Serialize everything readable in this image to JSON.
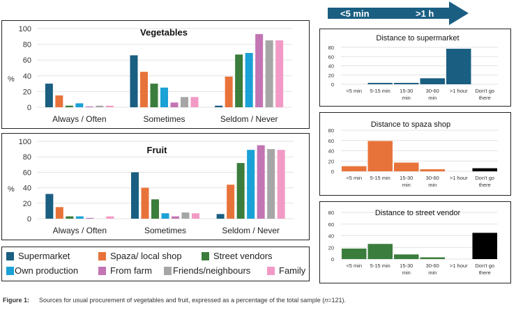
{
  "colors": {
    "Supermarket": "#1a5e82",
    "Spaza/ local shop": "#e8733a",
    "Street vendors": "#3b7d3c",
    "Own production": "#1aa1d6",
    "From farm": "#c374b3",
    "Friends/neighbours": "#a6a6a6",
    "Family": "#f29ac5",
    "dont_go": "#000000",
    "grid": "#e2e2e2"
  },
  "arrow": {
    "left_label": "<5 min",
    "right_label": ">1 h",
    "color": "#1a5e82"
  },
  "legend": {
    "items": [
      "Supermarket",
      "Spaza/ local shop",
      "Street vendors",
      "Own production",
      "From farm",
      "Friends/neighbours",
      "Family"
    ]
  },
  "caption": {
    "label": "Figure 1:",
    "text_pre": "Sources for usual procurement of vegetables and fruit, expressed as a percentage of the total sample (",
    "n_italic": "n",
    "text_post": "=121)."
  },
  "chart_data": [
    {
      "id": "vegetables",
      "type": "bar",
      "title": "Vegetables",
      "ylabel": "%",
      "xlabel": "",
      "ylim": [
        0,
        100
      ],
      "yticks": [
        0,
        20,
        40,
        60,
        80,
        100
      ],
      "grid": true,
      "categories": [
        "Always / Often",
        "Sometimes",
        "Seldom / Never"
      ],
      "series": [
        {
          "name": "Supermarket",
          "values": [
            30,
            66,
            2
          ]
        },
        {
          "name": "Spaza/ local shop",
          "values": [
            15,
            45,
            39
          ]
        },
        {
          "name": "Street vendors",
          "values": [
            2,
            30,
            67
          ]
        },
        {
          "name": "Own production",
          "values": [
            5,
            25,
            69
          ]
        },
        {
          "name": "From farm",
          "values": [
            1,
            6,
            93
          ]
        },
        {
          "name": "Friends/neighbours",
          "values": [
            2,
            13,
            85
          ]
        },
        {
          "name": "Family",
          "values": [
            2,
            13,
            85
          ]
        }
      ]
    },
    {
      "id": "fruit",
      "type": "bar",
      "title": "Fruit",
      "ylabel": "%",
      "xlabel": "",
      "ylim": [
        0,
        100
      ],
      "yticks": [
        0,
        20,
        40,
        60,
        80,
        100
      ],
      "grid": true,
      "categories": [
        "Always / Often",
        "Sometimes",
        "Seldom / Never"
      ],
      "series": [
        {
          "name": "Supermarket",
          "values": [
            32,
            60,
            6
          ]
        },
        {
          "name": "Spaza/ local shop",
          "values": [
            15,
            40,
            44
          ]
        },
        {
          "name": "Street vendors",
          "values": [
            3,
            25,
            72
          ]
        },
        {
          "name": "Own production",
          "values": [
            3,
            7,
            89
          ]
        },
        {
          "name": "From farm",
          "values": [
            1,
            3,
            95
          ]
        },
        {
          "name": "Friends/neighbours",
          "values": [
            0,
            8,
            90
          ]
        },
        {
          "name": "Family",
          "values": [
            3,
            7,
            89
          ]
        }
      ]
    },
    {
      "id": "supermarket-distance",
      "type": "bar",
      "title": "Distance to supermarket",
      "ylim": [
        0,
        80
      ],
      "yticks": [
        0,
        20,
        40,
        60,
        80
      ],
      "grid": true,
      "categories": [
        "<5 min",
        "5-15 min",
        "15-30 min",
        "30-60 min",
        ">1 hour",
        "Don't go there"
      ],
      "values": [
        0,
        3,
        3,
        13,
        77,
        0
      ],
      "bar_color": "Supermarket"
    },
    {
      "id": "spaza-distance",
      "type": "bar",
      "title": "Distance to spaza shop",
      "ylim": [
        0,
        80
      ],
      "yticks": [
        0,
        20,
        40,
        60,
        80
      ],
      "grid": true,
      "categories": [
        "<5 min",
        "5-15 min",
        "15-30 min",
        "30-60 min",
        ">1 hour",
        "Don't go there"
      ],
      "values": [
        10,
        59,
        17,
        4,
        0,
        6
      ],
      "bar_color": "Spaza/ local shop"
    },
    {
      "id": "street-distance",
      "type": "bar",
      "title": "Distance to street vendor",
      "ylim": [
        0,
        80
      ],
      "yticks": [
        0,
        20,
        40,
        60,
        80
      ],
      "grid": true,
      "categories": [
        "<5 min",
        "5-15 min",
        "15-30 min",
        "30-60 min",
        ">1 hour",
        "Don't go there"
      ],
      "values": [
        18,
        26,
        8,
        3,
        0,
        45
      ],
      "bar_color": "Street vendors"
    }
  ]
}
